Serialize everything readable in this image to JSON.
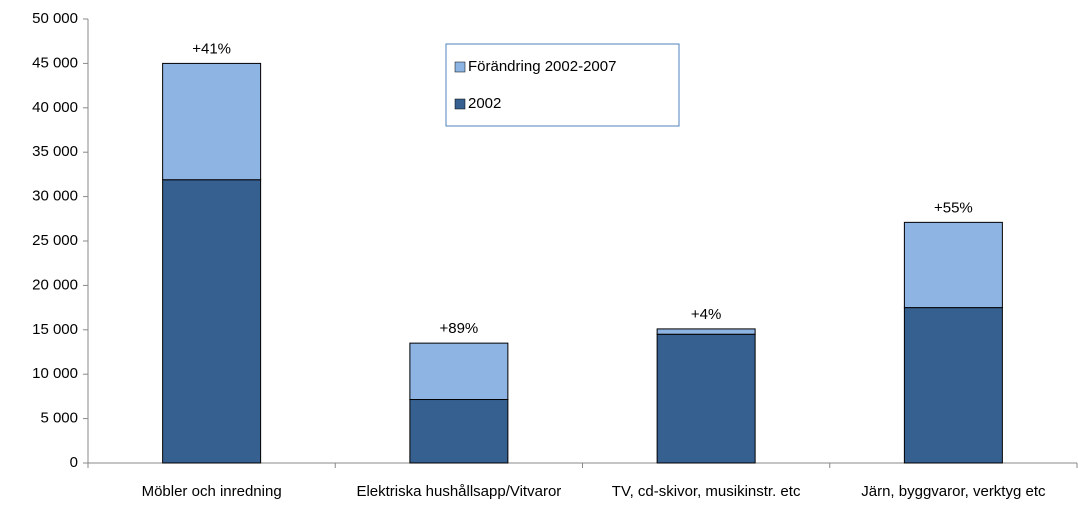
{
  "chart_data": {
    "type": "stacked_bar",
    "categories": [
      "Möbler och inredning",
      "Elektriska hushållsapp/Vitvaror",
      "TV, cd-skivor, musikinstr. etc",
      "Järn, byggvaror, verktyg etc"
    ],
    "series": [
      {
        "name": "2002",
        "color": "#36608f",
        "values": [
          31900,
          7150,
          14500,
          17500
        ]
      },
      {
        "name": "Förändring 2002-2007",
        "color": "#8eb4e3",
        "values": [
          13100,
          6350,
          600,
          9600
        ]
      }
    ],
    "annotations": [
      "+41%",
      "+89%",
      "+4%",
      "+55%"
    ],
    "ylim": [
      0,
      50000
    ],
    "yticks": [
      {
        "value": 0,
        "label": "0"
      },
      {
        "value": 5000,
        "label": "5 000"
      },
      {
        "value": 10000,
        "label": "10 000"
      },
      {
        "value": 15000,
        "label": "15 000"
      },
      {
        "value": 20000,
        "label": "20 000"
      },
      {
        "value": 25000,
        "label": "25 000"
      },
      {
        "value": 30000,
        "label": "30 000"
      },
      {
        "value": 35000,
        "label": "35 000"
      },
      {
        "value": 40000,
        "label": "40 000"
      },
      {
        "value": 45000,
        "label": "45 000"
      },
      {
        "value": 50000,
        "label": "50 000"
      }
    ],
    "legend": "top-center"
  }
}
